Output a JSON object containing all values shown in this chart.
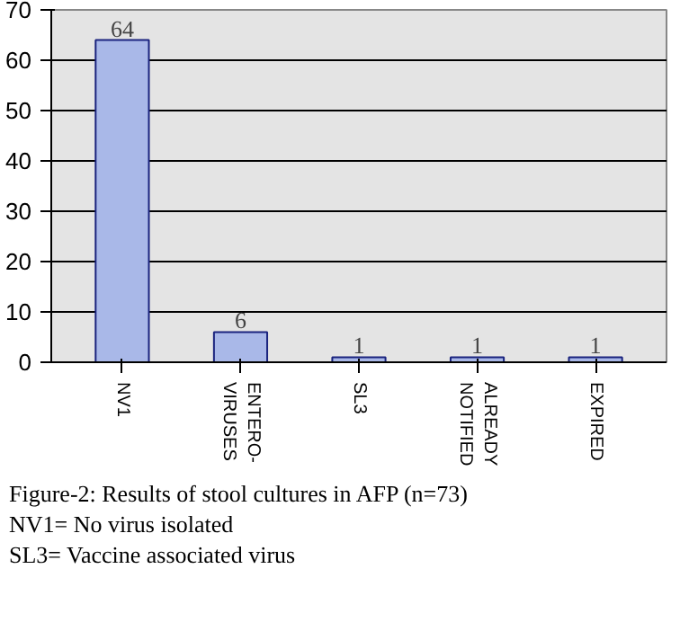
{
  "chart_data": {
    "type": "bar",
    "categories": [
      "NV1",
      "ENTERO-\nVIRUSES",
      "SL3",
      "ALREADY\nNOTIFIED",
      "EXPIRED"
    ],
    "values": [
      64,
      6,
      1,
      1,
      1
    ],
    "color": "#a9b8e8",
    "ylim": [
      0,
      70
    ],
    "yticks": [
      0,
      10,
      20,
      30,
      40,
      50,
      60,
      70
    ],
    "grid": "y",
    "data_labels": true,
    "annotations": [
      "Figure-2: Results of stool cultures in AFP (n=73)",
      "NV1= No virus isolated",
      "SL3= Vaccine associated virus"
    ]
  }
}
